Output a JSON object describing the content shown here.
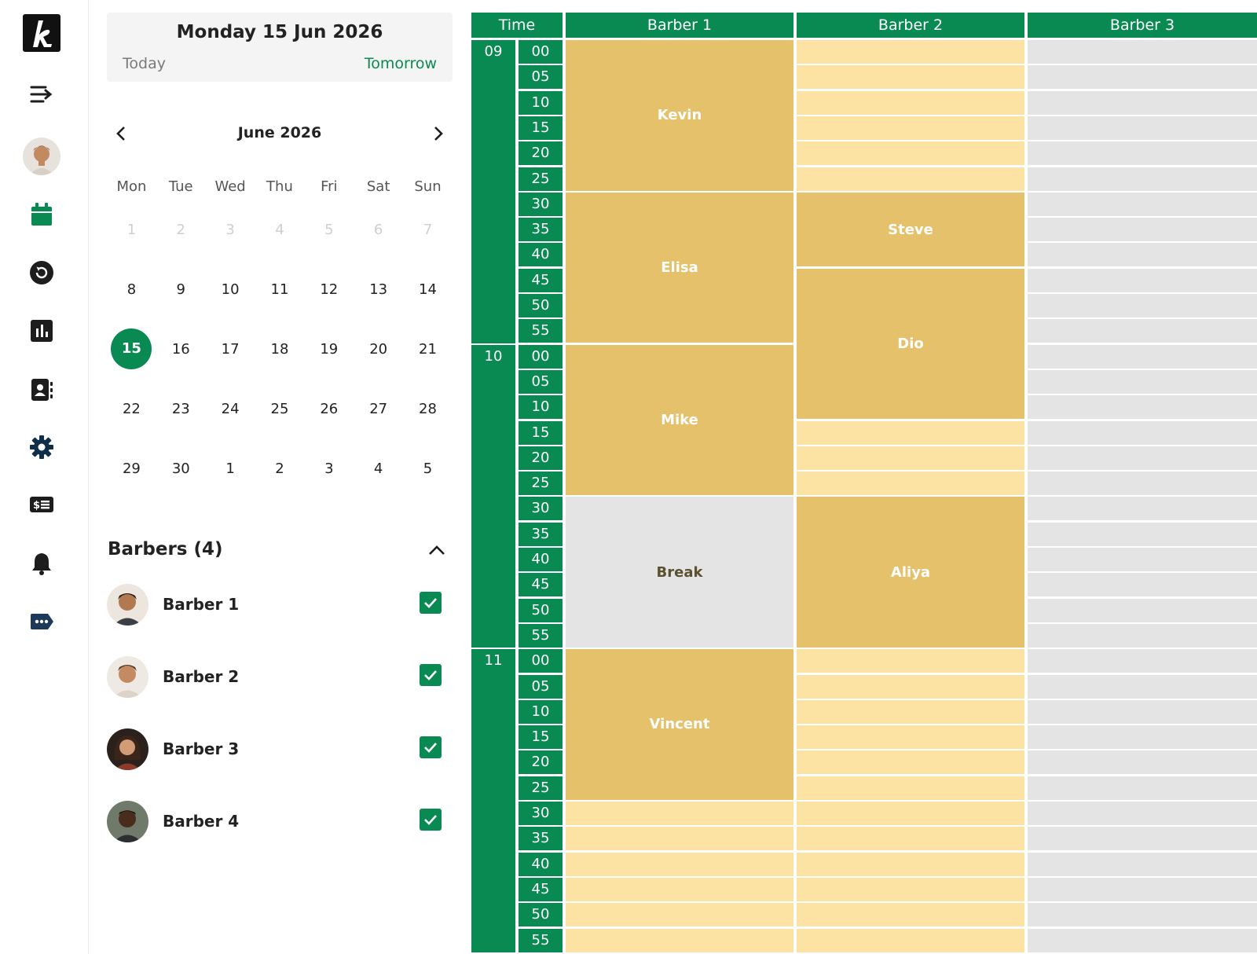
{
  "rail": {
    "icons": [
      "logo-icon",
      "menu-expand-icon",
      "profile-avatar",
      "calendar-icon",
      "history-icon",
      "chart-icon",
      "contacts-icon",
      "settings-icon",
      "billing-icon",
      "notifications-icon",
      "messages-icon"
    ],
    "active_color": "#0a8a53"
  },
  "date_panel": {
    "title": "Monday 15 Jun 2026",
    "today": "Today",
    "tomorrow": "Tomorrow"
  },
  "calendar": {
    "month": "June 2026",
    "weekdays": [
      "Mon",
      "Tue",
      "Wed",
      "Thu",
      "Fri",
      "Sat",
      "Sun"
    ],
    "weeks": [
      [
        "1",
        "2",
        "3",
        "4",
        "5",
        "6",
        "7"
      ],
      [
        "8",
        "9",
        "10",
        "11",
        "12",
        "13",
        "14"
      ],
      [
        "15",
        "16",
        "17",
        "18",
        "19",
        "20",
        "21"
      ],
      [
        "22",
        "23",
        "24",
        "25",
        "26",
        "27",
        "28"
      ],
      [
        "29",
        "30",
        "1",
        "2",
        "3",
        "4",
        "5"
      ]
    ],
    "selected": "15"
  },
  "barbers": {
    "title": "Barbers (4)",
    "list": [
      {
        "name": "Barber 1",
        "checked": true
      },
      {
        "name": "Barber 2",
        "checked": true
      },
      {
        "name": "Barber 3",
        "checked": true
      },
      {
        "name": "Barber 4",
        "checked": true
      }
    ]
  },
  "schedule": {
    "headers": [
      "Time",
      "Barber 1",
      "Barber 2",
      "Barber 3"
    ],
    "hours": [
      "09",
      "10",
      "11"
    ],
    "minutes": [
      "00",
      "05",
      "10",
      "15",
      "20",
      "25",
      "30",
      "35",
      "40",
      "45",
      "50",
      "55"
    ],
    "appointments": {
      "barber1": [
        {
          "name": "Kevin",
          "start": "09:00",
          "end": "09:30"
        },
        {
          "name": "Elisa",
          "start": "09:30",
          "end": "10:00"
        },
        {
          "name": "Mike",
          "start": "10:00",
          "end": "10:30"
        },
        {
          "name": "Break",
          "start": "10:30",
          "end": "11:00",
          "type": "break"
        },
        {
          "name": "Vincent",
          "start": "11:00",
          "end": "11:30"
        }
      ],
      "barber2": [
        {
          "name": "Steve",
          "start": "09:30",
          "end": "09:45"
        },
        {
          "name": "Dio",
          "start": "09:45",
          "end": "10:15"
        },
        {
          "name": "Aliya",
          "start": "10:30",
          "end": "11:00"
        }
      ],
      "barber3": []
    },
    "colors": {
      "green": "#0a8a53",
      "free": "#fde3a3",
      "booked": "#e6c16b",
      "unavailable": "#e4e4e4"
    }
  }
}
